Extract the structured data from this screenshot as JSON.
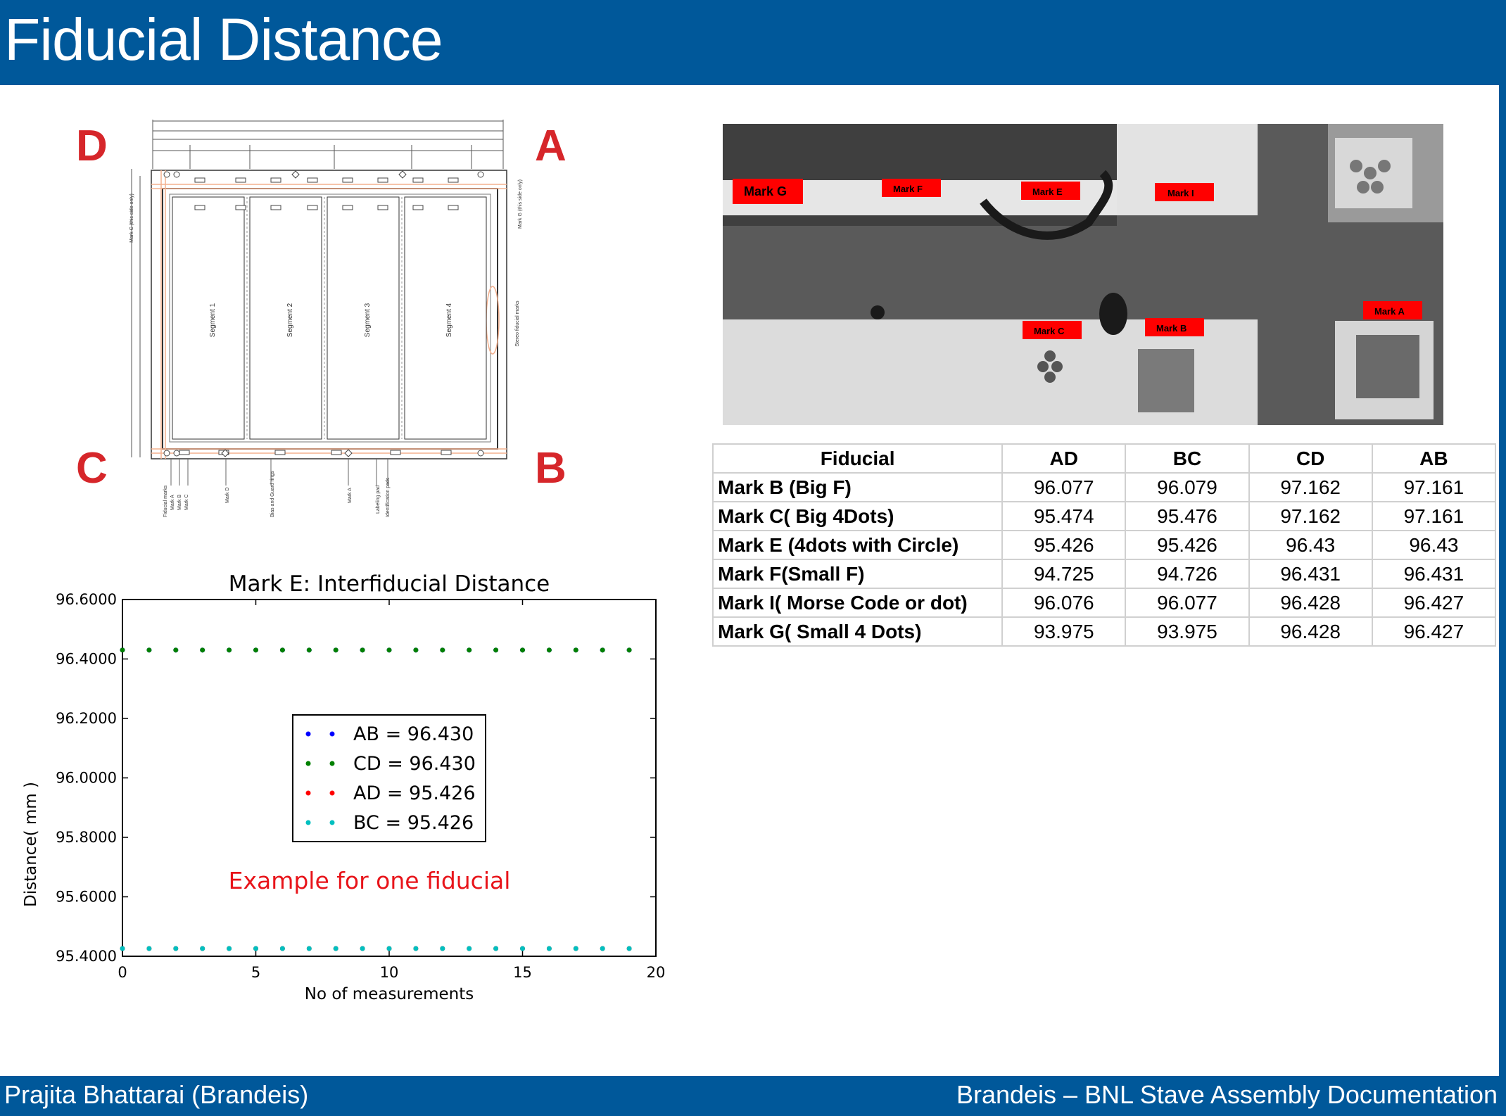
{
  "header": {
    "title": "Fiducial Distance"
  },
  "footer": {
    "left": "Prajita Bhattarai (Brandeis)",
    "right": "Brandeis – BNL Stave Assembly Documentation"
  },
  "drawing": {
    "corners": {
      "d": "D",
      "a": "A",
      "c": "C",
      "b": "B"
    },
    "segments": [
      "Segment 1",
      "Segment 2",
      "Segment 3",
      "Segment 4"
    ],
    "side_labels": {
      "mark_c": "Mark C (this side only)",
      "mark_g": "Mark G (this side only)",
      "stereo": "Stereo fiducial marks"
    },
    "bottom_labels": [
      "Fiducial marks",
      "Mark A",
      "Mark B",
      "Mark C",
      "Mark D",
      "Bias and Guard rings",
      "Mark A",
      "Labeling pad",
      "Identification pads"
    ]
  },
  "photo": {
    "marks": [
      "Mark G",
      "Mark F",
      "Mark E",
      "Mark I",
      "Mark C",
      "Mark B",
      "Mark A"
    ]
  },
  "table": {
    "headers": [
      "Fiducial",
      "AD",
      "BC",
      "CD",
      "AB"
    ],
    "rows": [
      [
        "Mark B (Big F)",
        "96.077",
        "96.079",
        "97.162",
        "97.161"
      ],
      [
        "Mark C( Big 4Dots)",
        "95.474",
        "95.476",
        "97.162",
        "97.161"
      ],
      [
        "Mark E (4dots with Circle)",
        "95.426",
        "95.426",
        "96.43",
        "96.43"
      ],
      [
        "Mark F(Small F)",
        "94.725",
        "94.726",
        "96.431",
        "96.431"
      ],
      [
        "Mark I( Morse Code or dot)",
        "96.076",
        "96.077",
        "96.428",
        "96.427"
      ],
      [
        "Mark G( Small 4 Dots)",
        "93.975",
        "93.975",
        "96.428",
        "96.427"
      ]
    ]
  },
  "chart_data": {
    "type": "scatter",
    "title": "Mark E: Interfiducial Distance",
    "xlabel": "No of measurements",
    "ylabel": "Distance( mm )",
    "xlim": [
      0,
      20
    ],
    "ylim": [
      95.4,
      96.6
    ],
    "xticks": [
      "0",
      "5",
      "10",
      "15",
      "20"
    ],
    "yticks": [
      "95.4000",
      "95.6000",
      "95.8000",
      "96.0000",
      "96.2000",
      "96.4000",
      "96.6000"
    ],
    "legend": "center",
    "annotation": "Example for one fiducial",
    "x": [
      0,
      1,
      2,
      3,
      4,
      5,
      6,
      7,
      8,
      9,
      10,
      11,
      12,
      13,
      14,
      15,
      16,
      17,
      18,
      19
    ],
    "series": [
      {
        "name": "AB = 96.430",
        "color": "#0000ff",
        "values": [
          96.43,
          96.43,
          96.43,
          96.43,
          96.43,
          96.43,
          96.43,
          96.43,
          96.43,
          96.43,
          96.43,
          96.43,
          96.43,
          96.43,
          96.43,
          96.43,
          96.43,
          96.43,
          96.43,
          96.43
        ]
      },
      {
        "name": "CD = 96.430",
        "color": "#008000",
        "values": [
          96.43,
          96.43,
          96.43,
          96.43,
          96.43,
          96.43,
          96.43,
          96.43,
          96.43,
          96.43,
          96.43,
          96.43,
          96.43,
          96.43,
          96.43,
          96.43,
          96.43,
          96.43,
          96.43,
          96.43
        ]
      },
      {
        "name": "AD = 95.426",
        "color": "#ff0000",
        "values": [
          95.426,
          95.426,
          95.426,
          95.426,
          95.426,
          95.426,
          95.426,
          95.426,
          95.426,
          95.426,
          95.426,
          95.426,
          95.426,
          95.426,
          95.426,
          95.426,
          95.426,
          95.426,
          95.426,
          95.426
        ]
      },
      {
        "name": "BC = 95.426",
        "color": "#00bfbf",
        "values": [
          95.426,
          95.426,
          95.426,
          95.426,
          95.426,
          95.426,
          95.426,
          95.426,
          95.426,
          95.426,
          95.426,
          95.426,
          95.426,
          95.426,
          95.426,
          95.426,
          95.426,
          95.426,
          95.426,
          95.426
        ]
      }
    ]
  }
}
